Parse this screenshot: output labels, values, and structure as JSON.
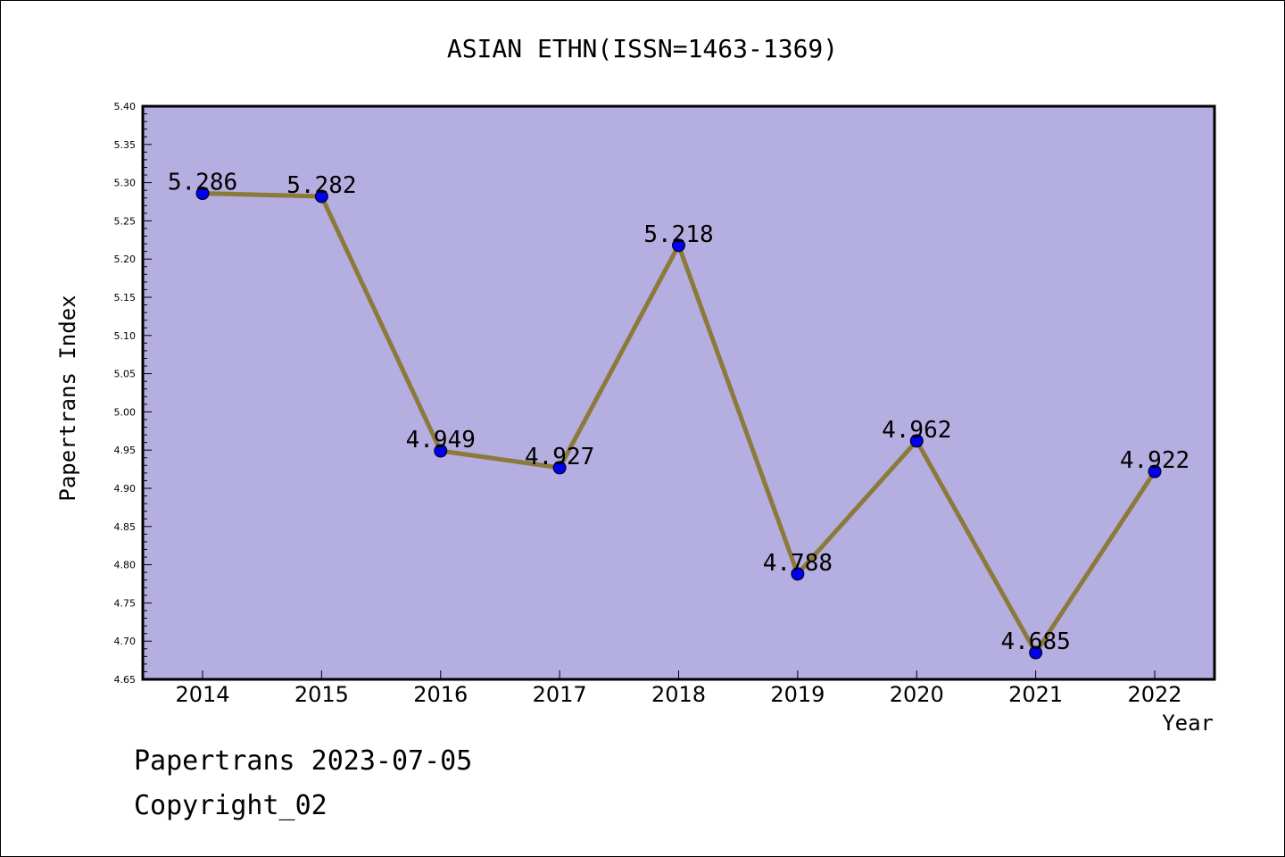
{
  "chart_data": {
    "type": "line",
    "title": "ASIAN ETHN(ISSN=1463-1369)",
    "xlabel": "Year",
    "ylabel": "Papertrans Index",
    "categories": [
      "2014",
      "2015",
      "2016",
      "2017",
      "2018",
      "2019",
      "2020",
      "2021",
      "2022"
    ],
    "values": [
      5.286,
      5.282,
      4.949,
      4.927,
      5.218,
      4.788,
      4.962,
      4.685,
      4.922
    ],
    "data_labels": [
      "5.286",
      "5.282",
      "4.949",
      "4.927",
      "5.218",
      "4.788",
      "4.962",
      "4.685",
      "4.922"
    ],
    "ylim": [
      4.65,
      5.4
    ],
    "yticks": [
      "4.65",
      "4.70",
      "4.75",
      "4.80",
      "4.85",
      "4.90",
      "4.95",
      "5.00",
      "5.05",
      "5.10",
      "5.15",
      "5.20",
      "5.25",
      "5.30",
      "5.35",
      "5.40"
    ],
    "grid": false,
    "colors": {
      "plot_background": "#b5aee1",
      "line": "#8b7a3a",
      "marker": "#0000ee"
    }
  },
  "footer": {
    "date_text": "Papertrans 2023-07-05",
    "copyright_text": "Copyright_02"
  }
}
